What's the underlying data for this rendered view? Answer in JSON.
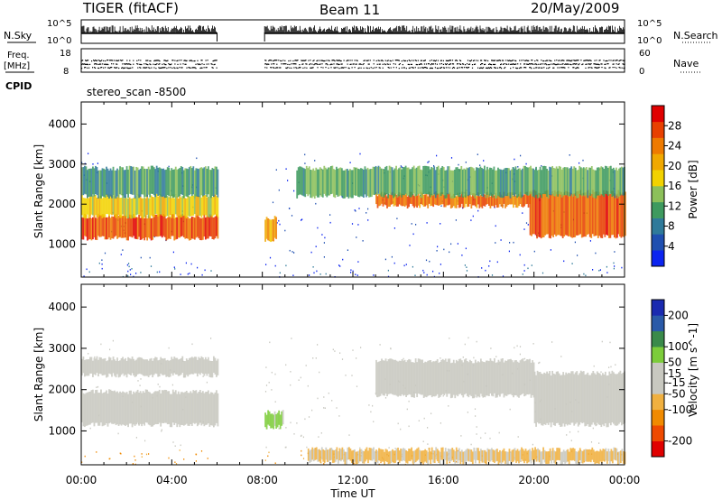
{
  "header": {
    "station": "TIGER (fitACF)",
    "beam": "Beam 11",
    "date": "20/May/2009"
  },
  "strips": {
    "nsky_label": "N.Sky",
    "nsearch_label": "N.Search",
    "nsky_ticks": [
      "10^5",
      "10^0"
    ],
    "nsearch_ticks": [
      "10^5",
      "10^0"
    ],
    "freq_label_1": "Freq.",
    "freq_label_2": "[MHz]",
    "freq_ticks": [
      "18",
      "8"
    ],
    "nave_label": "Nave",
    "nave_ticks": [
      "60",
      "0"
    ],
    "cpid_label": "CPID",
    "cpid_value": "stereo_scan -8500"
  },
  "colors": {
    "power": [
      "#0b24f0",
      "#1f4fb0",
      "#2f7a9a",
      "#3e9a5f",
      "#8cc05a",
      "#f2d200",
      "#f0a800",
      "#ee7a00",
      "#e84000",
      "#e00000"
    ],
    "velocity": [
      "#e00000",
      "#ee4a00",
      "#f08a00",
      "#f0b040",
      "#c8c8c0",
      "#c8c8c0",
      "#7ccc3a",
      "#3a8a4a",
      "#2a5aa8",
      "#1a2ab0"
    ]
  },
  "chart_data": [
    {
      "type": "heatmap",
      "title": "",
      "xlabel": "Time UT",
      "ylabel": "Slant Range [km]",
      "xlim": [
        0,
        24
      ],
      "ylim": [
        180,
        4550
      ],
      "x_ticks": [
        "00:00",
        "04:00",
        "08:00",
        "12:00",
        "16:00",
        "20:00",
        "00:00"
      ],
      "y_ticks": [
        1000,
        2000,
        3000,
        4000
      ],
      "colorbar_label": "Power [dB]",
      "colorbar_ticks": [
        4,
        8,
        12,
        16,
        20,
        24,
        28
      ],
      "colorbar_range": [
        0,
        32
      ],
      "data_gap_hours": [
        6.0,
        8.1
      ],
      "features": [
        {
          "t_start": 0.0,
          "t_end": 6.0,
          "range_low_km": 1150,
          "range_high_km": 1700,
          "power_db": 28
        },
        {
          "t_start": 0.0,
          "t_end": 6.0,
          "range_low_km": 1700,
          "range_high_km": 2200,
          "power_db": 18
        },
        {
          "t_start": 0.0,
          "t_end": 6.0,
          "range_low_km": 2200,
          "range_high_km": 2900,
          "power_db": 10
        },
        {
          "t_start": 8.1,
          "t_end": 8.6,
          "range_low_km": 1100,
          "range_high_km": 1650,
          "power_db": 22
        },
        {
          "t_start": 13.0,
          "t_end": 19.8,
          "range_low_km": 1950,
          "range_high_km": 2250,
          "power_db": 26
        },
        {
          "t_start": 19.8,
          "t_end": 24.0,
          "range_low_km": 1200,
          "range_high_km": 2300,
          "power_db": 27
        },
        {
          "t_start": 9.5,
          "t_end": 24.0,
          "range_low_km": 2200,
          "range_high_km": 2900,
          "power_db": 12
        }
      ]
    },
    {
      "type": "heatmap",
      "title": "",
      "xlabel": "Time UT",
      "ylabel": "Slant Range [km]",
      "xlim": [
        0,
        24
      ],
      "ylim": [
        180,
        4550
      ],
      "x_ticks": [
        "00:00",
        "04:00",
        "08:00",
        "12:00",
        "16:00",
        "20:00",
        "00:00"
      ],
      "y_ticks": [
        1000,
        2000,
        3000,
        4000
      ],
      "colorbar_label": "Velocity [m s^-1]",
      "colorbar_ticks": [
        -200,
        -100,
        -50,
        -15,
        15,
        50,
        100,
        200
      ],
      "colorbar_range": [
        -250,
        250
      ],
      "data_gap_hours": [
        6.0,
        8.1
      ],
      "features": [
        {
          "t_start": 0.0,
          "t_end": 6.0,
          "range_low_km": 1150,
          "range_high_km": 1950,
          "velocity_ms": 0
        },
        {
          "t_start": 0.0,
          "t_end": 6.0,
          "range_low_km": 2350,
          "range_high_km": 2750,
          "velocity_ms": 0
        },
        {
          "t_start": 8.1,
          "t_end": 8.9,
          "range_low_km": 1100,
          "range_high_km": 1450,
          "velocity_ms": 60
        },
        {
          "t_start": 13.0,
          "t_end": 20.0,
          "range_low_km": 1850,
          "range_high_km": 2700,
          "velocity_ms": 0
        },
        {
          "t_start": 20.0,
          "t_end": 24.0,
          "range_low_km": 1150,
          "range_high_km": 2400,
          "velocity_ms": 0
        },
        {
          "t_start": 10.0,
          "t_end": 24.0,
          "range_low_km": 250,
          "range_high_km": 550,
          "velocity_ms": -60
        }
      ]
    }
  ]
}
